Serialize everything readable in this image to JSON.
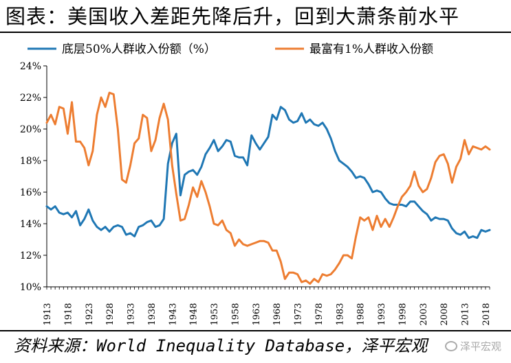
{
  "title": "图表：美国收入差距先降后升，回到大萧条前水平",
  "source": "资料来源：World Inequality Database，泽平宏观",
  "watermark": "泽平宏观",
  "colors": {
    "bottom50": "#1f77b4",
    "top1": "#ed7d31"
  },
  "chart_data": {
    "type": "line",
    "title": "",
    "xlabel": "",
    "ylabel": "",
    "xlim": [
      1913,
      2019
    ],
    "ylim": [
      10,
      24
    ],
    "y_ticks": [
      10,
      12,
      14,
      16,
      18,
      20,
      22,
      24
    ],
    "y_tick_labels": [
      "10%",
      "12%",
      "14%",
      "16%",
      "18%",
      "20%",
      "22%",
      "24%"
    ],
    "x_ticks": [
      1913,
      1918,
      1923,
      1928,
      1933,
      1938,
      1943,
      1948,
      1953,
      1958,
      1963,
      1968,
      1973,
      1978,
      1983,
      1988,
      1993,
      1998,
      2003,
      2008,
      2013,
      2018
    ],
    "legend_position": "top",
    "grid": false,
    "x": [
      1913,
      1914,
      1915,
      1916,
      1917,
      1918,
      1919,
      1920,
      1921,
      1922,
      1923,
      1924,
      1925,
      1926,
      1927,
      1928,
      1929,
      1930,
      1931,
      1932,
      1933,
      1934,
      1935,
      1936,
      1937,
      1938,
      1939,
      1940,
      1941,
      1942,
      1943,
      1944,
      1945,
      1946,
      1947,
      1948,
      1949,
      1950,
      1951,
      1952,
      1953,
      1954,
      1955,
      1956,
      1957,
      1958,
      1959,
      1960,
      1961,
      1962,
      1963,
      1964,
      1965,
      1966,
      1967,
      1968,
      1969,
      1970,
      1971,
      1972,
      1973,
      1974,
      1975,
      1976,
      1977,
      1978,
      1979,
      1980,
      1981,
      1982,
      1983,
      1984,
      1985,
      1986,
      1987,
      1988,
      1989,
      1990,
      1991,
      1992,
      1993,
      1994,
      1995,
      1996,
      1997,
      1998,
      1999,
      2000,
      2001,
      2002,
      2003,
      2004,
      2005,
      2006,
      2007,
      2008,
      2009,
      2010,
      2011,
      2012,
      2013,
      2014,
      2015,
      2016,
      2017,
      2018,
      2019
    ],
    "series": [
      {
        "name": "底层50%人群收入份额（%）",
        "color": "#1f77b4",
        "values": [
          15.1,
          14.9,
          15.1,
          14.7,
          14.6,
          14.7,
          14.4,
          14.8,
          13.9,
          14.3,
          14.9,
          14.2,
          13.8,
          13.6,
          13.8,
          13.5,
          13.8,
          13.9,
          13.8,
          13.3,
          13.4,
          13.2,
          13.8,
          13.9,
          14.1,
          14.2,
          13.8,
          13.9,
          14.3,
          17.8,
          19.1,
          19.7,
          15.8,
          17.1,
          17.3,
          17.4,
          17.1,
          17.6,
          18.4,
          18.8,
          19.3,
          18.6,
          18.9,
          19.3,
          19.2,
          18.3,
          18.2,
          18.2,
          17.7,
          19.6,
          19.1,
          18.7,
          19.1,
          19.5,
          20.9,
          20.6,
          21.4,
          21.2,
          20.6,
          20.4,
          20.5,
          21.0,
          20.4,
          20.6,
          20.3,
          20.2,
          20.4,
          20.0,
          19.4,
          18.6,
          18.0,
          17.8,
          17.6,
          17.3,
          16.9,
          17.0,
          16.9,
          16.5,
          16.0,
          16.1,
          16.0,
          15.6,
          15.3,
          15.2,
          15.2,
          15.2,
          15.1,
          15.4,
          15.4,
          15.1,
          14.8,
          14.6,
          14.2,
          14.4,
          14.3,
          14.3,
          14.2,
          13.7,
          13.4,
          13.3,
          13.5,
          13.1,
          13.2,
          13.1,
          13.6,
          13.5,
          13.6
        ]
      },
      {
        "name": "最富有1%人群收入份额",
        "color": "#ed7d31",
        "values": [
          20.4,
          20.9,
          20.3,
          21.4,
          21.3,
          19.7,
          21.7,
          19.2,
          19.2,
          18.8,
          17.7,
          18.6,
          20.9,
          22.0,
          21.4,
          22.3,
          22.2,
          20.0,
          16.8,
          16.6,
          17.7,
          19.1,
          19.4,
          20.9,
          20.7,
          18.6,
          19.3,
          20.7,
          21.6,
          20.6,
          17.7,
          15.9,
          14.2,
          14.3,
          15.2,
          16.3,
          15.7,
          16.7,
          16.0,
          15.1,
          14.0,
          13.9,
          14.2,
          13.6,
          13.4,
          12.6,
          13.0,
          12.7,
          12.6,
          12.7,
          12.8,
          12.9,
          12.9,
          12.8,
          12.3,
          12.3,
          11.6,
          10.5,
          10.9,
          10.9,
          10.8,
          10.3,
          10.4,
          10.2,
          10.5,
          10.3,
          10.8,
          10.7,
          10.8,
          11.1,
          11.5,
          12.0,
          12.0,
          11.8,
          13.2,
          14.4,
          14.2,
          14.4,
          13.6,
          14.5,
          13.8,
          14.3,
          13.8,
          14.4,
          15.1,
          15.7,
          16.0,
          16.4,
          17.3,
          16.4,
          16.0,
          16.2,
          16.9,
          17.9,
          18.3,
          18.4,
          17.8,
          16.6,
          17.6,
          18.1,
          19.3,
          18.4,
          18.9,
          18.8,
          18.7,
          18.9,
          18.7
        ]
      }
    ]
  }
}
